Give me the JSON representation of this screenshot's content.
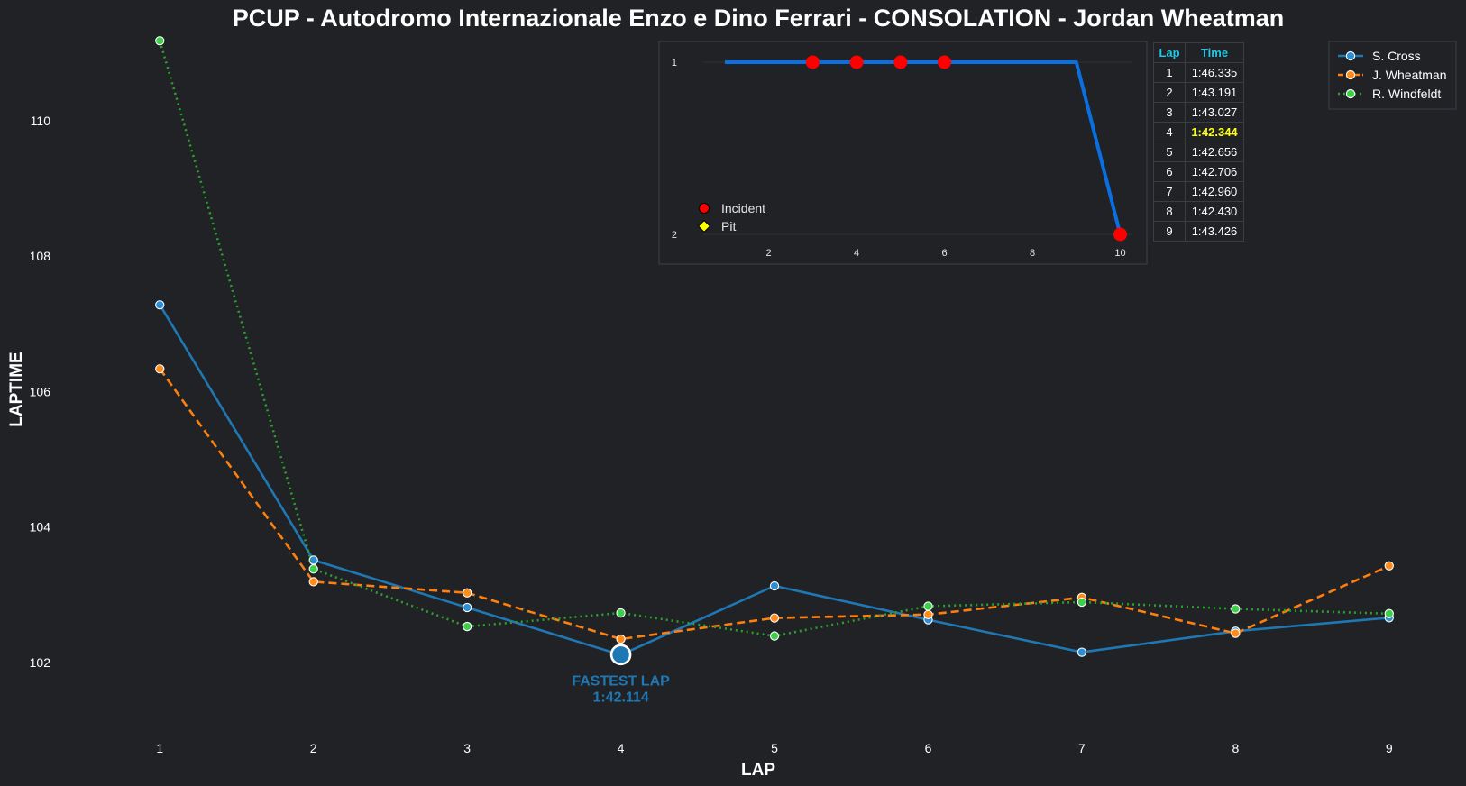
{
  "title": "PCUP - Autodromo Internazionale Enzo e Dino Ferrari - CONSOLATION - Jordan Wheatman",
  "chart_data": [
    {
      "type": "line",
      "title": "PCUP - Autodromo Internazionale Enzo e Dino Ferrari - CONSOLATION - Jordan Wheatman",
      "xlabel": "LAP",
      "ylabel": "LAPTIME",
      "x": [
        1,
        2,
        3,
        4,
        5,
        6,
        7,
        8,
        9
      ],
      "x_ticks": [
        1,
        2,
        3,
        4,
        5,
        6,
        7,
        8,
        9
      ],
      "y_ticks": [
        102,
        104,
        106,
        108,
        110
      ],
      "xlim": [
        0.4,
        9.5
      ],
      "ylim": [
        101.0,
        111.25
      ],
      "grid": false,
      "legend_position": "top-right",
      "series": [
        {
          "name": "S. Cross",
          "color": "#1f77b4",
          "marker_color": "#2b8fd6",
          "style": "solid",
          "values": [
            107.28,
            103.51,
            102.81,
            102.11,
            103.13,
            102.63,
            102.15,
            102.46,
            102.66
          ]
        },
        {
          "name": "J. Wheatman",
          "color": "#ff7f0e",
          "marker_color": "#ff8c1a",
          "style": "dashed",
          "values": [
            106.335,
            103.191,
            103.027,
            102.344,
            102.656,
            102.706,
            102.96,
            102.43,
            103.426
          ]
        },
        {
          "name": "R. Windfeldt",
          "color": "#2ca02c",
          "marker_color": "#3ecf4a",
          "style": "dotted",
          "values": [
            111.18,
            103.38,
            102.53,
            102.73,
            102.39,
            102.83,
            102.89,
            102.79,
            102.72
          ]
        }
      ],
      "annotation": {
        "x": 4,
        "y": 102.114,
        "line1": "FASTEST LAP",
        "line2": "1:42.114",
        "color": "#1f77b4"
      }
    },
    {
      "type": "line",
      "title": "",
      "x": [
        1,
        2,
        3,
        4,
        5,
        6,
        7,
        8,
        9,
        10
      ],
      "values": [
        1,
        1,
        1,
        1,
        1,
        1,
        1,
        1,
        1,
        2
      ],
      "x_ticks": [
        2,
        4,
        6,
        8,
        10
      ],
      "y_ticks": [
        1,
        2
      ],
      "xlim": [
        0.1,
        10.4
      ],
      "ylim": [
        2,
        1
      ],
      "line_color": "#0a6fe0",
      "incident_laps": [
        3,
        4,
        5,
        6,
        10
      ],
      "pit_laps": [],
      "incident_color": "#ff0000",
      "pit_color": "#ffff00",
      "legend": [
        "Incident",
        "Pit"
      ]
    }
  ],
  "lap_table": {
    "headers": [
      "Lap",
      "Time"
    ],
    "rows": [
      {
        "lap": "1",
        "time": "1:46.335",
        "best": false
      },
      {
        "lap": "2",
        "time": "1:43.191",
        "best": false
      },
      {
        "lap": "3",
        "time": "1:43.027",
        "best": false
      },
      {
        "lap": "4",
        "time": "1:42.344",
        "best": true
      },
      {
        "lap": "5",
        "time": "1:42.656",
        "best": false
      },
      {
        "lap": "6",
        "time": "1:42.706",
        "best": false
      },
      {
        "lap": "7",
        "time": "1:42.960",
        "best": false
      },
      {
        "lap": "8",
        "time": "1:42.430",
        "best": false
      },
      {
        "lap": "9",
        "time": "1:43.426",
        "best": false
      }
    ]
  },
  "colors": {
    "background": "#202226",
    "text": "#ffffff",
    "table_header": "#1ec8e6",
    "best_time": "#ffff1a"
  }
}
